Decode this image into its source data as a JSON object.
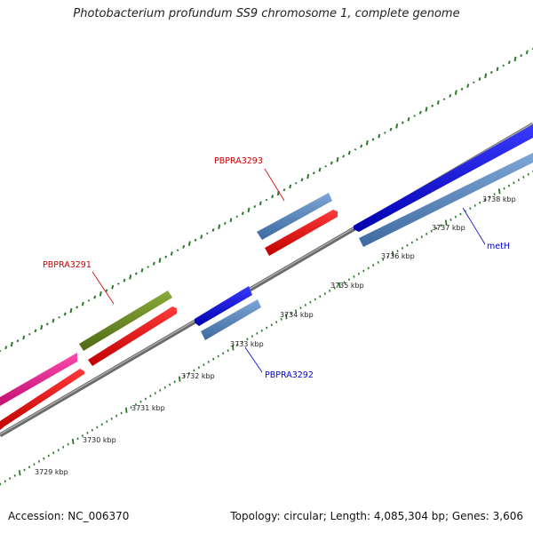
{
  "title": "Photobacterium profundum SS9 chromosome 1, complete genome",
  "footer": {
    "accession": "Accession: NC_006370",
    "summary": "Topology: circular; Length: 4,085,304 bp; Genes: 3,606"
  },
  "ticks": [
    "3729 kbp",
    "3730 kbp",
    "3731 kbp",
    "3732 kbp",
    "3733 kbp",
    "3734 kbp",
    "3735 kbp",
    "3736 kbp",
    "3737 kbp",
    "3738 kbp"
  ],
  "gene_labels": {
    "PBPRA3293": "PBPRA3293",
    "PBPRA3291": "PBPRA3291",
    "PBPRA3292": "PBPRA3292",
    "metH": "metH"
  },
  "colors": {
    "backbone": "#8a8a8a",
    "gc_skew": "#2a7a2a",
    "gene_steelblue": "#4a7ebb",
    "gene_blue": "#0000ee",
    "gene_red": "#ff0000",
    "gene_olive": "#6b8e23",
    "gene_pink": "#ff1493",
    "label_red": "#cc0000",
    "label_blue": "#0000cc"
  }
}
